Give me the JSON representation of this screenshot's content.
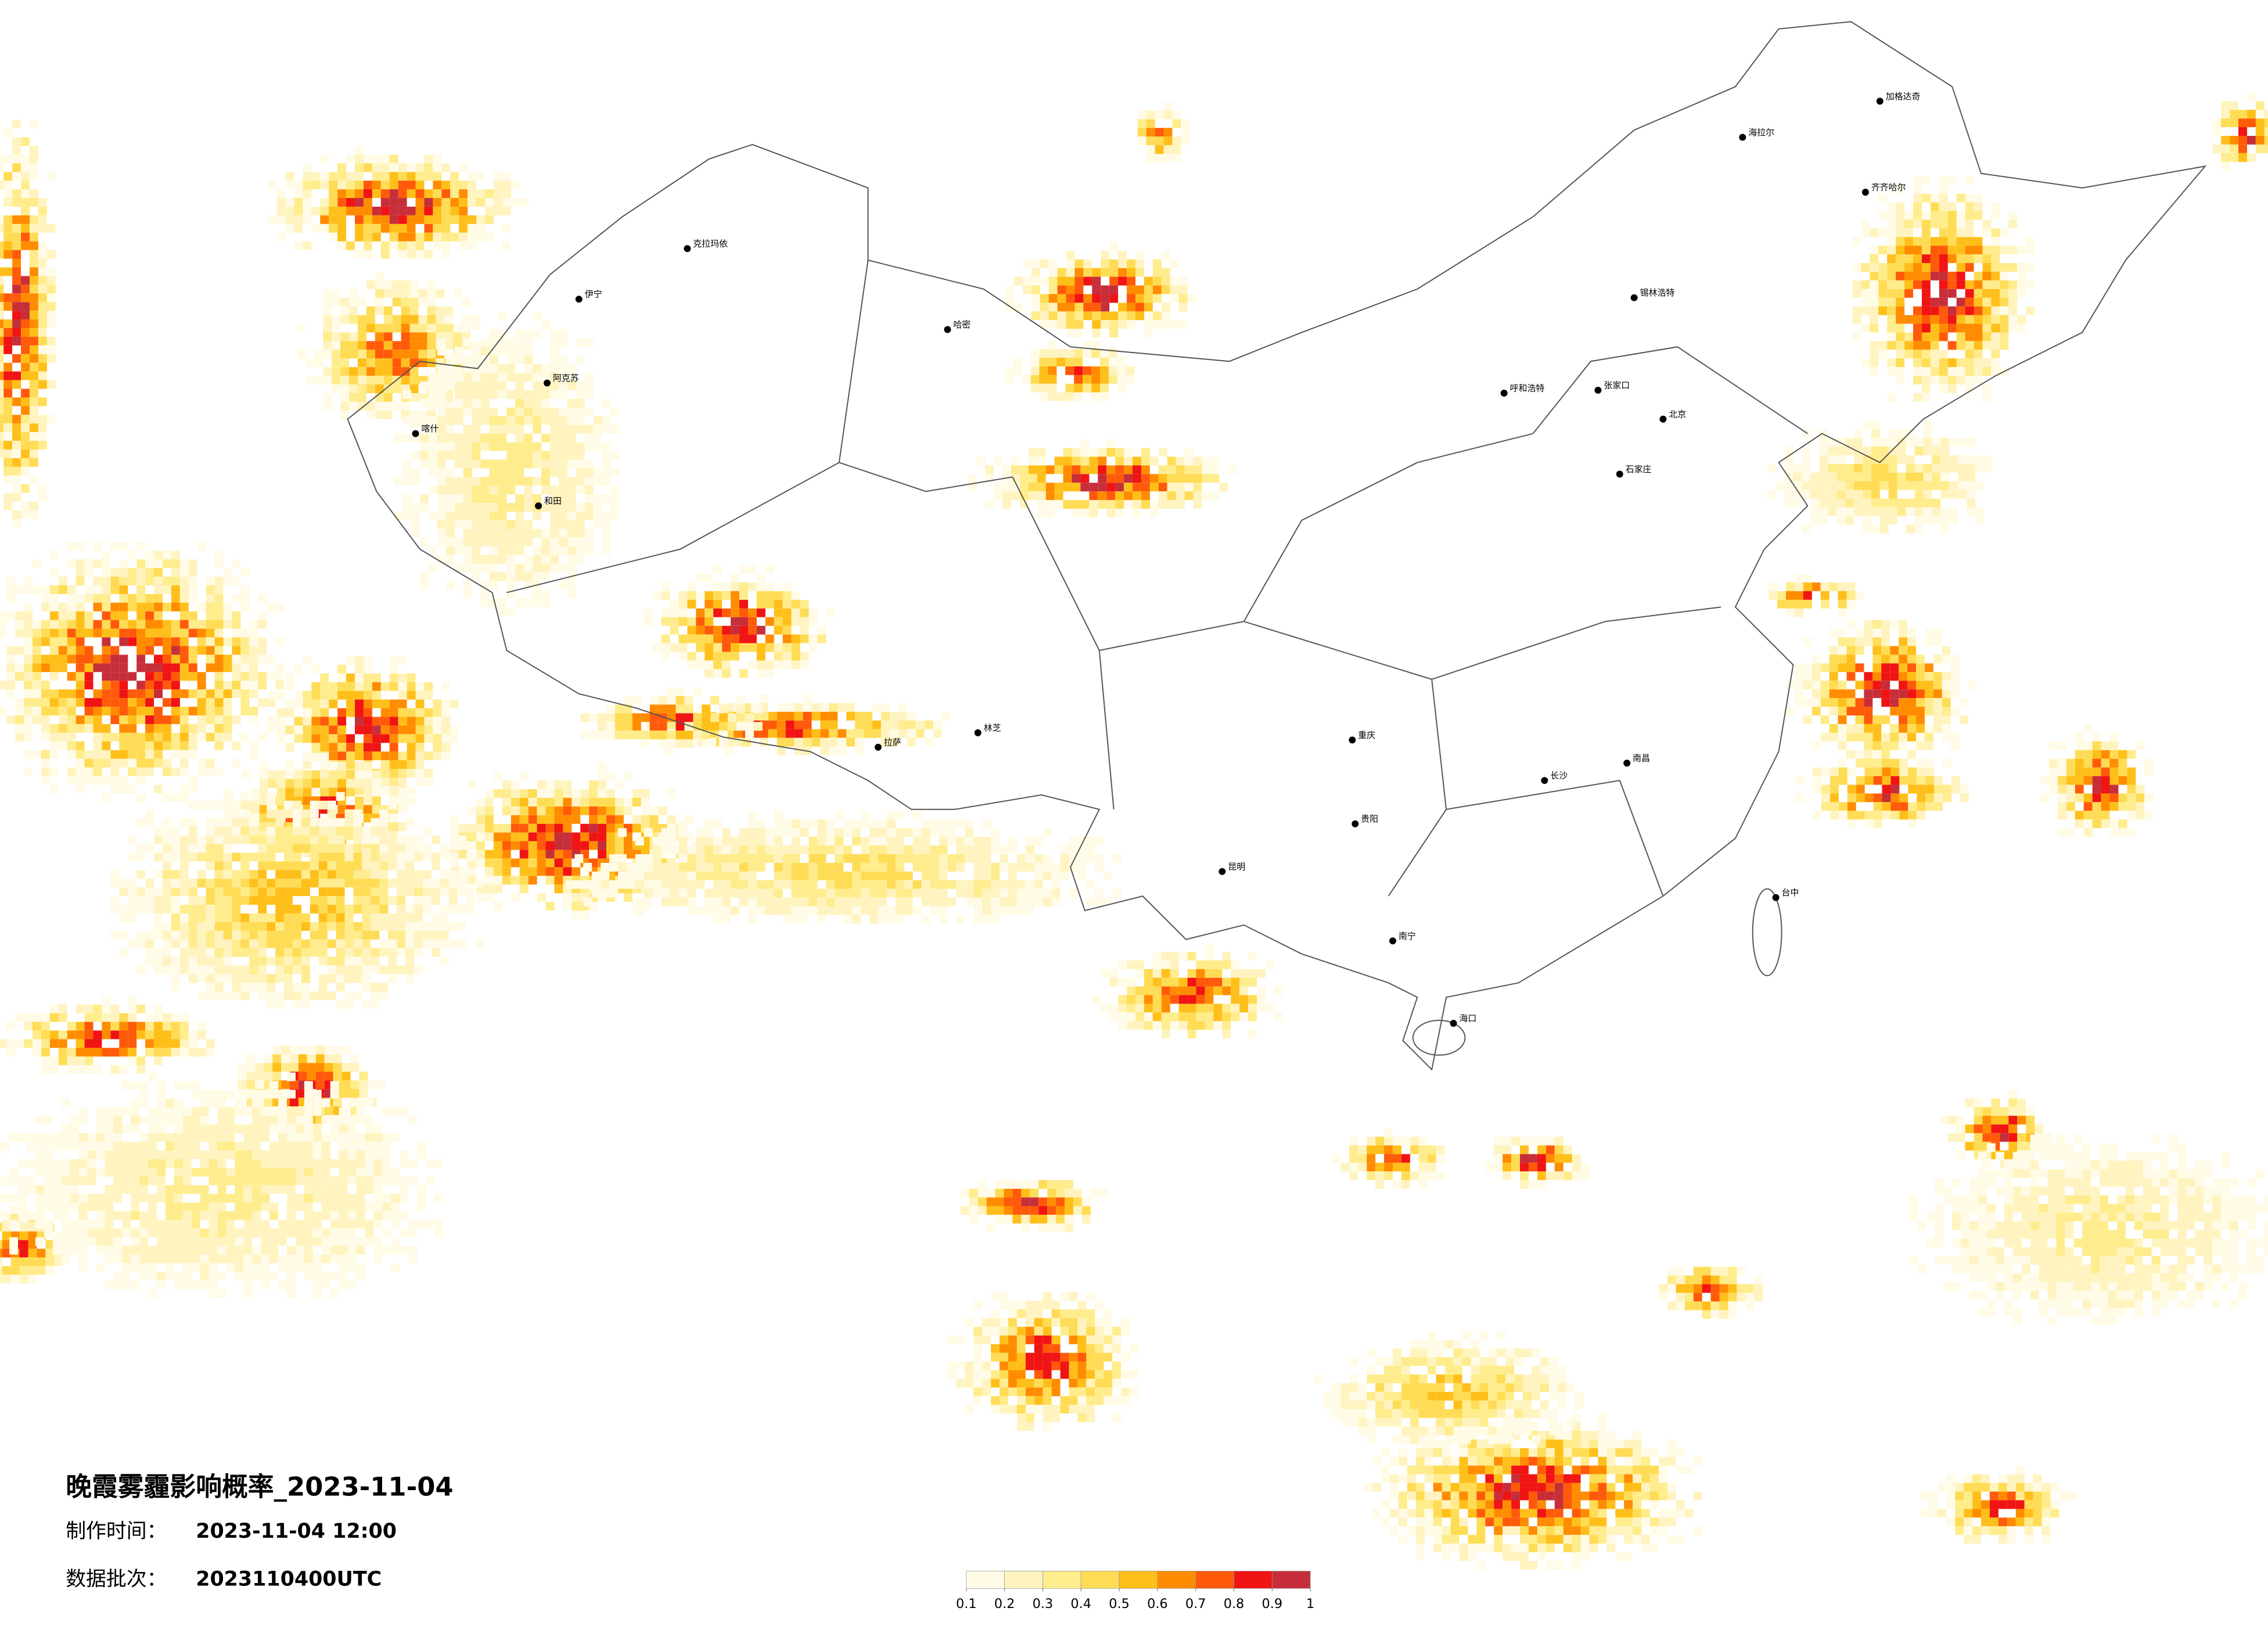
{
  "title": "晚霞雾霾影响概率_2023-11-04",
  "production_time": {
    "label": "制作时间：",
    "value": "2023-11-04 12:00"
  },
  "data_batch": {
    "label": "数据批次：",
    "value": "2023110400UTC"
  },
  "legend": {
    "ticks": [
      0.1,
      0.2,
      0.3,
      0.4,
      0.5,
      0.6,
      0.7,
      0.8,
      0.9,
      1
    ],
    "colors": [
      "#fffbe6",
      "#fff4c0",
      "#ffec8c",
      "#ffdc55",
      "#ffbf1a",
      "#ff8c00",
      "#ff5a0a",
      "#f01414",
      "#c62f3a"
    ]
  },
  "cities": [
    "加格达奇",
    "海拉尔",
    "齐齐哈尔",
    "锡林浩特",
    "呼和浩特",
    "张家口",
    "北京",
    "石家庄",
    "克拉玛依",
    "哈密",
    "喀什",
    "和田",
    "伊宁",
    "阿克苏",
    "拉萨",
    "林芝",
    "重庆",
    "贵阳",
    "昆明",
    "南宁",
    "海口",
    "台中",
    "南昌",
    "长沙"
  ]
}
